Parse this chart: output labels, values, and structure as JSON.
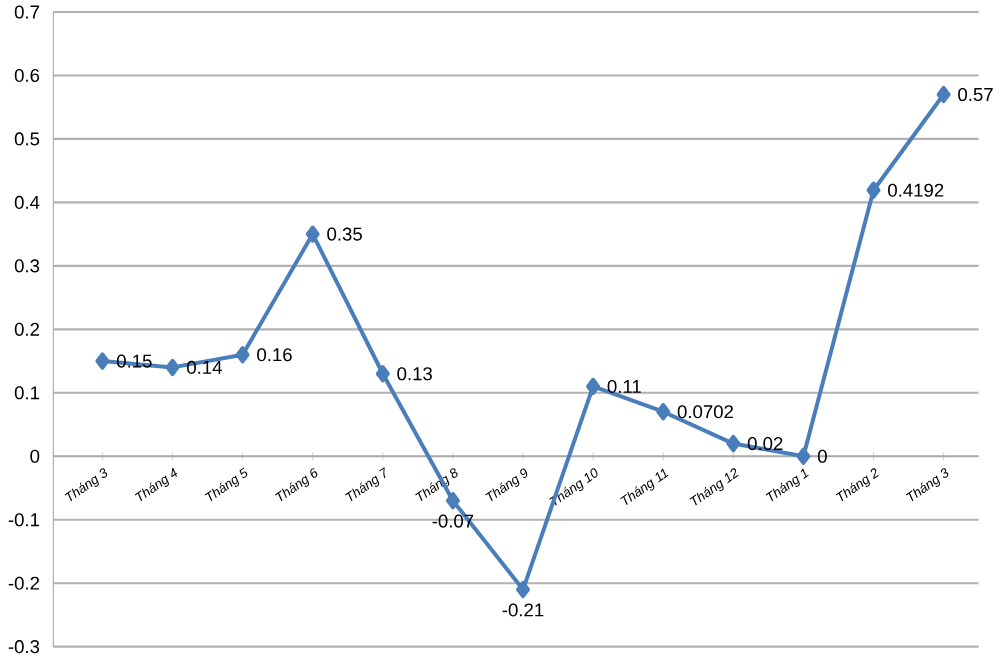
{
  "chart_data": {
    "type": "line",
    "categories": [
      "Tháng 3",
      "Tháng 4",
      "Tháng 5",
      "Tháng 6",
      "Tháng 7",
      "Tháng 8",
      "Tháng 9",
      "Tháng 10",
      "Tháng 11",
      "Tháng 12",
      "Tháng 1",
      "Tháng 2",
      "Tháng 3"
    ],
    "series": [
      {
        "color": "#4a7ebb",
        "values": [
          0.15,
          0.14,
          0.16,
          0.35,
          0.13,
          -0.07,
          -0.21,
          0.11,
          0.0702,
          0.02,
          0,
          0.4192,
          0.57
        ],
        "value_labels": [
          "0.15",
          "0.14",
          "0.16",
          "0.35",
          "0.13",
          "-0.07",
          "-0.21",
          "0.11",
          "0.0702",
          "0.02",
          "0",
          "0.4192",
          "0.57"
        ]
      }
    ],
    "ylim": [
      -0.3,
      0.7
    ],
    "yticks": [
      -0.3,
      -0.2,
      -0.1,
      0,
      0.1,
      0.2,
      0.3,
      0.4,
      0.5,
      0.6,
      0.7
    ],
    "grid": "y",
    "marker": "diamond",
    "line_style": "solid"
  }
}
